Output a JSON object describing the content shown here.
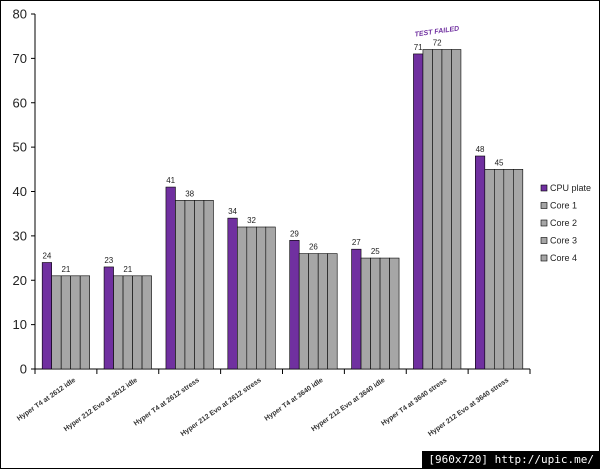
{
  "chart_data": {
    "type": "bar",
    "categories": [
      "Hyper T4 at 2612 idle",
      "Hyper 212 Evo at 2612 idle",
      "Hyper T4 at 2612 stress",
      "Hyper 212 Evo at 2612 stress",
      "Hyper T4 at 3640 idle",
      "Hyper 212 Evo at 3640 idle",
      "Hyper T4 at 3640 stress",
      "Hyper 212 Evo at 3640 stress"
    ],
    "series": [
      {
        "name": "CPU plate",
        "values": [
          24,
          23,
          41,
          34,
          29,
          27,
          71,
          48
        ]
      },
      {
        "name": "Core 1",
        "values": [
          21,
          21,
          38,
          32,
          26,
          25,
          72,
          45
        ]
      },
      {
        "name": "Core 2",
        "values": [
          21,
          21,
          38,
          32,
          26,
          25,
          72,
          45
        ]
      },
      {
        "name": "Core 3",
        "values": [
          21,
          21,
          38,
          32,
          26,
          25,
          72,
          45
        ]
      },
      {
        "name": "Core 4",
        "values": [
          21,
          21,
          38,
          32,
          26,
          25,
          72,
          45
        ]
      }
    ],
    "data_labels": {
      "CPU plate": [
        "24",
        "23",
        "41",
        "34",
        "29",
        "27",
        "71",
        "48"
      ],
      "Core 2": [
        "21",
        "21",
        "38",
        "32",
        "26",
        "25",
        "72",
        "45"
      ]
    },
    "yticks": [
      0,
      10,
      20,
      30,
      40,
      50,
      60,
      70,
      80
    ],
    "ylim": [
      0,
      80
    ],
    "grid": false,
    "legend_position": "right",
    "annotation": {
      "text": "TEST FAILED",
      "category_index": 6
    },
    "colors": {
      "CPU plate": "#7030a0",
      "Core": "#a6a6a6",
      "annotation": "#7030a0"
    }
  },
  "watermark": {
    "text": "[960x720] http://upic.me/"
  }
}
